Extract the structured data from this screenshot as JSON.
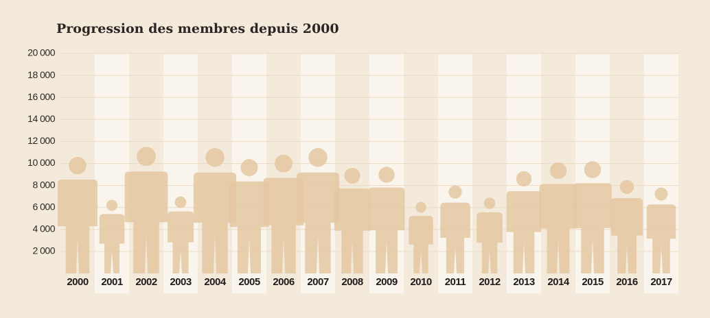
{
  "chart_data": {
    "type": "pictogram",
    "title": "Progression des membres depuis 2000",
    "categories": [
      "2000",
      "2001",
      "2002",
      "2003",
      "2004",
      "2005",
      "2006",
      "2007",
      "2008",
      "2009",
      "2010",
      "2011",
      "2012",
      "2013",
      "2014",
      "2015",
      "2016",
      "2017"
    ],
    "values": [
      10600,
      6700,
      11500,
      7000,
      11400,
      10400,
      10800,
      11400,
      9600,
      9700,
      6500,
      8000,
      6900,
      9300,
      10100,
      10200,
      8500,
      7800
    ],
    "color": "#e4c7a1",
    "ylim": [
      0,
      20000
    ],
    "yticks": [
      {
        "value": 2000,
        "label": "2 000"
      },
      {
        "value": 4000,
        "label": "4 000"
      },
      {
        "value": 6000,
        "label": "6 000"
      },
      {
        "value": 8000,
        "label": "8 000"
      },
      {
        "value": 10000,
        "label": "10 000"
      },
      {
        "value": 12000,
        "label": "12 000"
      },
      {
        "value": 14000,
        "label": "14 000"
      },
      {
        "value": 16000,
        "label": "16 000"
      },
      {
        "value": 18000,
        "label": "18 000"
      },
      {
        "value": 20000,
        "label": "20 000"
      }
    ],
    "grid": true
  }
}
